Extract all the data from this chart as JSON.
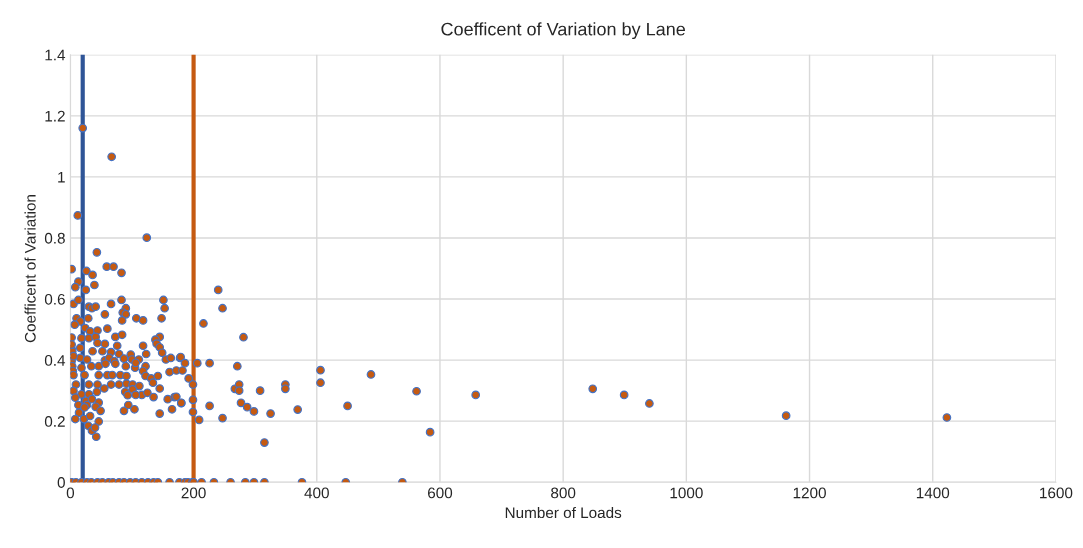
{
  "chart_data": {
    "type": "scatter",
    "title": "Coefficent of Variation by Lane",
    "xlabel": "Number of Loads",
    "ylabel": "Coefficent of Variation",
    "xlim": [
      0,
      1600
    ],
    "xticks": [
      0,
      200,
      400,
      600,
      800,
      1000,
      1200,
      1400,
      1600
    ],
    "ylim": [
      0,
      1.4
    ],
    "yticks": [
      0,
      0.2,
      0.4,
      0.6,
      0.8,
      1,
      1.2,
      1.4
    ],
    "grid": true,
    "marker": "circle",
    "ref_lines": [
      {
        "axis": "x",
        "value": 20,
        "color": "#2f5597"
      },
      {
        "axis": "x",
        "value": 200,
        "color": "#c55a11"
      }
    ],
    "series": [
      {
        "color": "#c55a11",
        "x": [
          20,
          67,
          12,
          124,
          43,
          2,
          59,
          70,
          26,
          36,
          83,
          13,
          39,
          8,
          25,
          5,
          13,
          30,
          35,
          41,
          66,
          83,
          151,
          153,
          90,
          85,
          90,
          84,
          56,
          107,
          118,
          148,
          10,
          16,
          29,
          7,
          24,
          32,
          44,
          60,
          2,
          18,
          30,
          41,
          73,
          84,
          145,
          138,
          140,
          118,
          76,
          56,
          2,
          16,
          44,
          36,
          145,
          149,
          52,
          66,
          79,
          123,
          98,
          111,
          155,
          163,
          178,
          2,
          16,
          27,
          56,
          63,
          71,
          87,
          100,
          3,
          4,
          18,
          34,
          46,
          57,
          73,
          90,
          105,
          122,
          106,
          161,
          172,
          182,
          5,
          23,
          46,
          60,
          68,
          81,
          91,
          118,
          122,
          131,
          142,
          9,
          30,
          44,
          66,
          79,
          91,
          101,
          112,
          134,
          145,
          101,
          5,
          18,
          30,
          43,
          55,
          89,
          93,
          116,
          125,
          135,
          106,
          158,
          169,
          180,
          165,
          8,
          25,
          35,
          46,
          13,
          27,
          41,
          49,
          14,
          22,
          29,
          35,
          42,
          8,
          46,
          87,
          104,
          94,
          145,
          23,
          32,
          40,
          3,
          5,
          2,
          240,
          247,
          216,
          281,
          179,
          186,
          206,
          226,
          271,
          406,
          406,
          488,
          562,
          658,
          848,
          192,
          199,
          199,
          199,
          209,
          172,
          180,
          226,
          247,
          267,
          274,
          274,
          277,
          287,
          298,
          308,
          325,
          315,
          349,
          349,
          369,
          450,
          584,
          899,
          940,
          1162,
          1423,
          0,
          2,
          9,
          18,
          27,
          34,
          44,
          52,
          62,
          69,
          79,
          87,
          97,
          106,
          116,
          126,
          135,
          142,
          161,
          177,
          186,
          191,
          198,
          200,
          213,
          233,
          260,
          284,
          298,
          315,
          376,
          447,
          539
        ],
        "values": [
          1.16,
          1.066,
          0.874,
          0.801,
          0.753,
          0.698,
          0.706,
          0.706,
          0.692,
          0.679,
          0.686,
          0.657,
          0.646,
          0.639,
          0.63,
          0.584,
          0.597,
          0.575,
          0.57,
          0.575,
          0.584,
          0.597,
          0.597,
          0.57,
          0.57,
          0.556,
          0.55,
          0.53,
          0.55,
          0.537,
          0.53,
          0.537,
          0.537,
          0.527,
          0.537,
          0.516,
          0.505,
          0.494,
          0.497,
          0.503,
          0.474,
          0.472,
          0.472,
          0.476,
          0.476,
          0.483,
          0.476,
          0.467,
          0.454,
          0.447,
          0.447,
          0.453,
          0.437,
          0.44,
          0.456,
          0.429,
          0.442,
          0.424,
          0.429,
          0.426,
          0.42,
          0.42,
          0.418,
          0.402,
          0.402,
          0.407,
          0.407,
          0.397,
          0.407,
          0.402,
          0.399,
          0.407,
          0.397,
          0.405,
          0.402,
          0.38,
          0.364,
          0.375,
          0.38,
          0.38,
          0.388,
          0.388,
          0.38,
          0.375,
          0.38,
          0.391,
          0.361,
          0.366,
          0.366,
          0.351,
          0.351,
          0.351,
          0.351,
          0.351,
          0.351,
          0.348,
          0.364,
          0.348,
          0.34,
          0.348,
          0.32,
          0.32,
          0.32,
          0.32,
          0.32,
          0.323,
          0.32,
          0.315,
          0.326,
          0.307,
          0.304,
          0.299,
          0.288,
          0.288,
          0.296,
          0.307,
          0.296,
          0.285,
          0.286,
          0.293,
          0.279,
          0.286,
          0.272,
          0.279,
          0.259,
          0.239,
          0.277,
          0.266,
          0.272,
          0.261,
          0.253,
          0.253,
          0.247,
          0.234,
          0.228,
          0.207,
          0.185,
          0.169,
          0.149,
          0.207,
          0.199,
          0.234,
          0.239,
          0.253,
          0.225,
          0.245,
          0.217,
          0.179,
          0.429,
          0.413,
          0.451,
          0.63,
          0.57,
          0.52,
          0.475,
          0.41,
          0.39,
          0.39,
          0.39,
          0.38,
          0.367,
          0.326,
          0.353,
          0.298,
          0.286,
          0.306,
          0.34,
          0.32,
          0.27,
          0.23,
          0.204,
          0.28,
          0.26,
          0.25,
          0.21,
          0.306,
          0.32,
          0.3,
          0.26,
          0.246,
          0.232,
          0.3,
          0.225,
          0.13,
          0.32,
          0.306,
          0.238,
          0.25,
          0.164,
          0.286,
          0.258,
          0.218,
          0.212,
          0,
          0,
          0,
          0,
          0,
          0,
          0,
          0,
          0,
          0,
          0,
          0,
          0,
          0,
          0,
          0,
          0,
          0,
          0,
          0,
          0,
          0,
          0,
          0,
          0,
          0,
          0,
          0,
          0,
          0,
          0,
          0,
          0
        ]
      }
    ]
  }
}
